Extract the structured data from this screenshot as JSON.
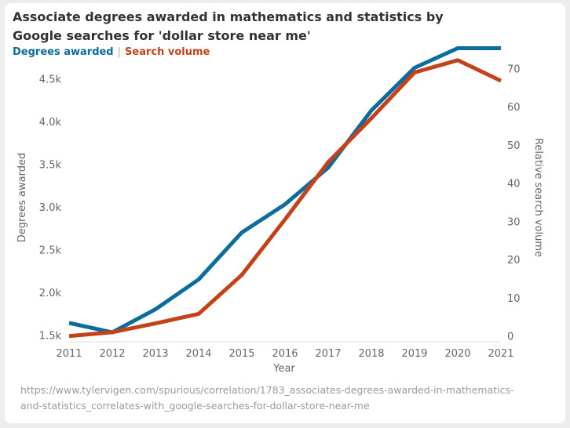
{
  "title_line1": "Associate degrees awarded in mathematics and statistics by",
  "title_line2": "Google searches for 'dollar store near me'",
  "legend": {
    "series1": "Degrees awarded",
    "separator": "|",
    "series2": "Search volume"
  },
  "source_line1": "https://www.tylervigen.com/spurious/correlation/1783_associates-degrees-awarded-in-mathematics-",
  "source_line2": "and-statistics_correlates-with_google-searches-for-dollar-store-near-me",
  "colors": {
    "series1": "#0c6c9c",
    "series2": "#c3421a",
    "axis_text": "#666666"
  },
  "chart_data": {
    "type": "line",
    "xlabel": "Year",
    "ylabel": "Degrees awarded",
    "y2label": "Relative search volume",
    "x": [
      2011,
      2012,
      2013,
      2014,
      2015,
      2016,
      2017,
      2018,
      2019,
      2020,
      2021
    ],
    "x_ticks": [
      "2011",
      "2012",
      "2013",
      "2014",
      "2015",
      "2016",
      "2017",
      "2018",
      "2019",
      "2020",
      "2021"
    ],
    "ylim": [
      1420,
      4800
    ],
    "y_ticks": [
      1500,
      2000,
      2500,
      3000,
      3500,
      4000,
      4500
    ],
    "y_tick_labels": [
      "1.5k",
      "2.0k",
      "2.5k",
      "3.0k",
      "3.5k",
      "4.0k",
      "4.5k"
    ],
    "y2lim": [
      -1.5,
      74
    ],
    "y2_ticks": [
      0,
      10,
      20,
      30,
      40,
      50,
      60,
      70
    ],
    "y2_tick_labels": [
      "0",
      "10",
      "20",
      "30",
      "40",
      "50",
      "60",
      "70"
    ],
    "grid": false,
    "legend_position": "top-left",
    "series": [
      {
        "name": "Degrees awarded",
        "axis": "left",
        "values": [
          1640,
          1530,
          1800,
          2150,
          2700,
          3030,
          3460,
          4130,
          4630,
          4860,
          4860
        ]
      },
      {
        "name": "Search volume",
        "axis": "right",
        "values": [
          0,
          1,
          3.3,
          5.8,
          16,
          30.5,
          45.5,
          57,
          69,
          72.2,
          66.8
        ]
      }
    ]
  }
}
